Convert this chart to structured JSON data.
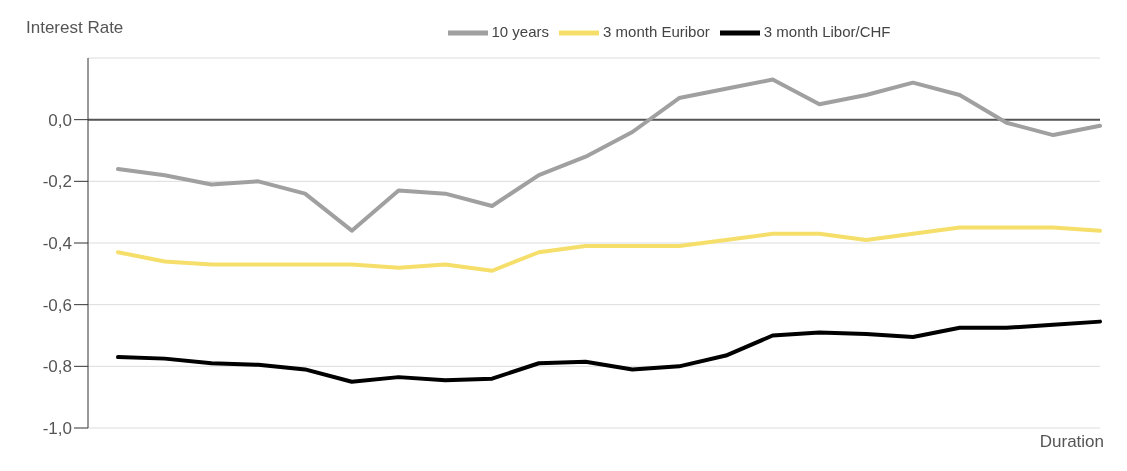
{
  "chart_data": {
    "type": "line",
    "ylabel": "Interest Rate",
    "xlabel": "Duration",
    "categories": [
      null,
      null,
      null,
      null,
      null,
      null,
      null,
      null,
      null,
      null,
      null,
      null,
      null,
      null,
      null,
      null,
      null,
      null,
      null,
      null,
      null,
      null
    ],
    "series": [
      {
        "name": "10 years",
        "color": "#a0a0a0",
        "values": [
          -0.16,
          -0.18,
          -0.21,
          -0.2,
          -0.24,
          -0.36,
          -0.23,
          -0.24,
          -0.28,
          -0.18,
          -0.12,
          -0.04,
          0.07,
          0.1,
          0.13,
          0.05,
          0.08,
          0.12,
          0.08,
          -0.01,
          -0.05,
          -0.02
        ]
      },
      {
        "name": "3 month Euribor",
        "color": "#f5df6a",
        "values": [
          -0.43,
          -0.46,
          -0.47,
          -0.47,
          -0.47,
          -0.47,
          -0.48,
          -0.47,
          -0.49,
          -0.43,
          -0.41,
          -0.41,
          -0.41,
          -0.39,
          -0.37,
          -0.37,
          -0.39,
          -0.37,
          -0.35,
          -0.35,
          -0.35,
          -0.36
        ]
      },
      {
        "name": "3 month Libor/CHF",
        "color": "#000000",
        "values": [
          -0.77,
          -0.775,
          -0.79,
          -0.795,
          -0.81,
          -0.85,
          -0.835,
          -0.845,
          -0.84,
          -0.79,
          -0.785,
          -0.81,
          -0.8,
          -0.765,
          -0.7,
          -0.69,
          -0.695,
          -0.705,
          -0.675,
          -0.675,
          -0.665,
          -0.655
        ]
      }
    ],
    "ylim": [
      -1,
      0.2
    ],
    "yticks": [
      {
        "value": 0,
        "label": "0,0"
      },
      {
        "value": -0.2,
        "label": "-0,2"
      },
      {
        "value": -0.4,
        "label": "-0,4"
      },
      {
        "value": -0.6,
        "label": "-0,6"
      },
      {
        "value": -0.8,
        "label": "-0,8"
      },
      {
        "value": -1,
        "label": "-1,0"
      }
    ],
    "grid": "y",
    "legend": "top",
    "marker": "none",
    "line_style": "solid"
  }
}
